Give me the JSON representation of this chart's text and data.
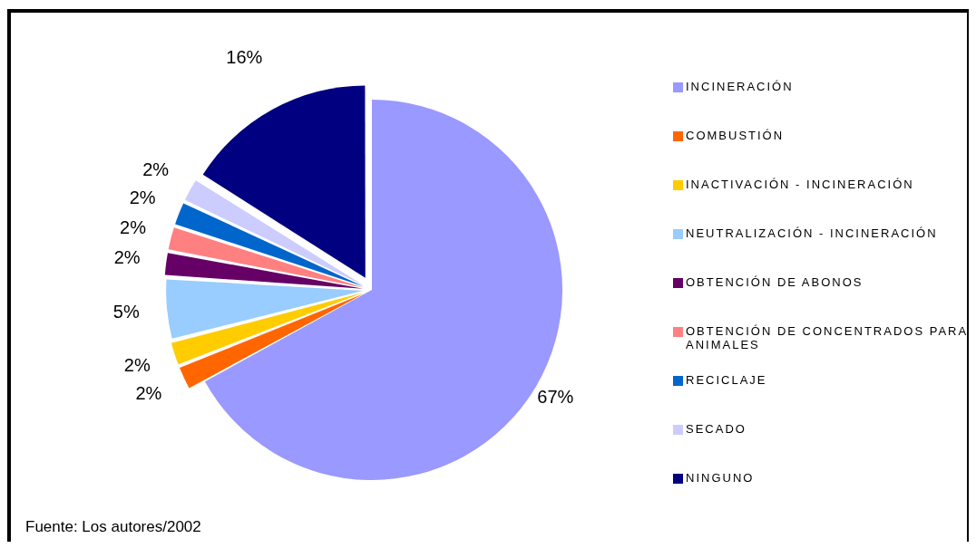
{
  "chart_data": {
    "type": "pie",
    "categories": [
      "INCINERACIÓN",
      "COMBUSTIÓN",
      "INACTIVACIÓN - INCINERACIÓN",
      "NEUTRALIZACIÓN - INCINERACIÓN",
      "OBTENCIÓN DE ABONOS",
      "OBTENCIÓN DE CONCENTRADOS PARA ANIMALES",
      "RECICLAJE",
      "SECADO",
      "NINGUNO"
    ],
    "values": [
      67,
      2,
      2,
      5,
      2,
      2,
      2,
      2,
      16
    ],
    "colors": [
      "#9999ff",
      "#ff6600",
      "#ffcc00",
      "#99ccff",
      "#660066",
      "#ff8080",
      "#0066cc",
      "#ccccff",
      "#000080"
    ],
    "value_labels": [
      "67%",
      "2%",
      "2%",
      "5%",
      "2%",
      "2%",
      "2%",
      "2%",
      "16%"
    ],
    "legend": "right",
    "annotations": [
      "Fuente: Los autores/2002"
    ]
  }
}
